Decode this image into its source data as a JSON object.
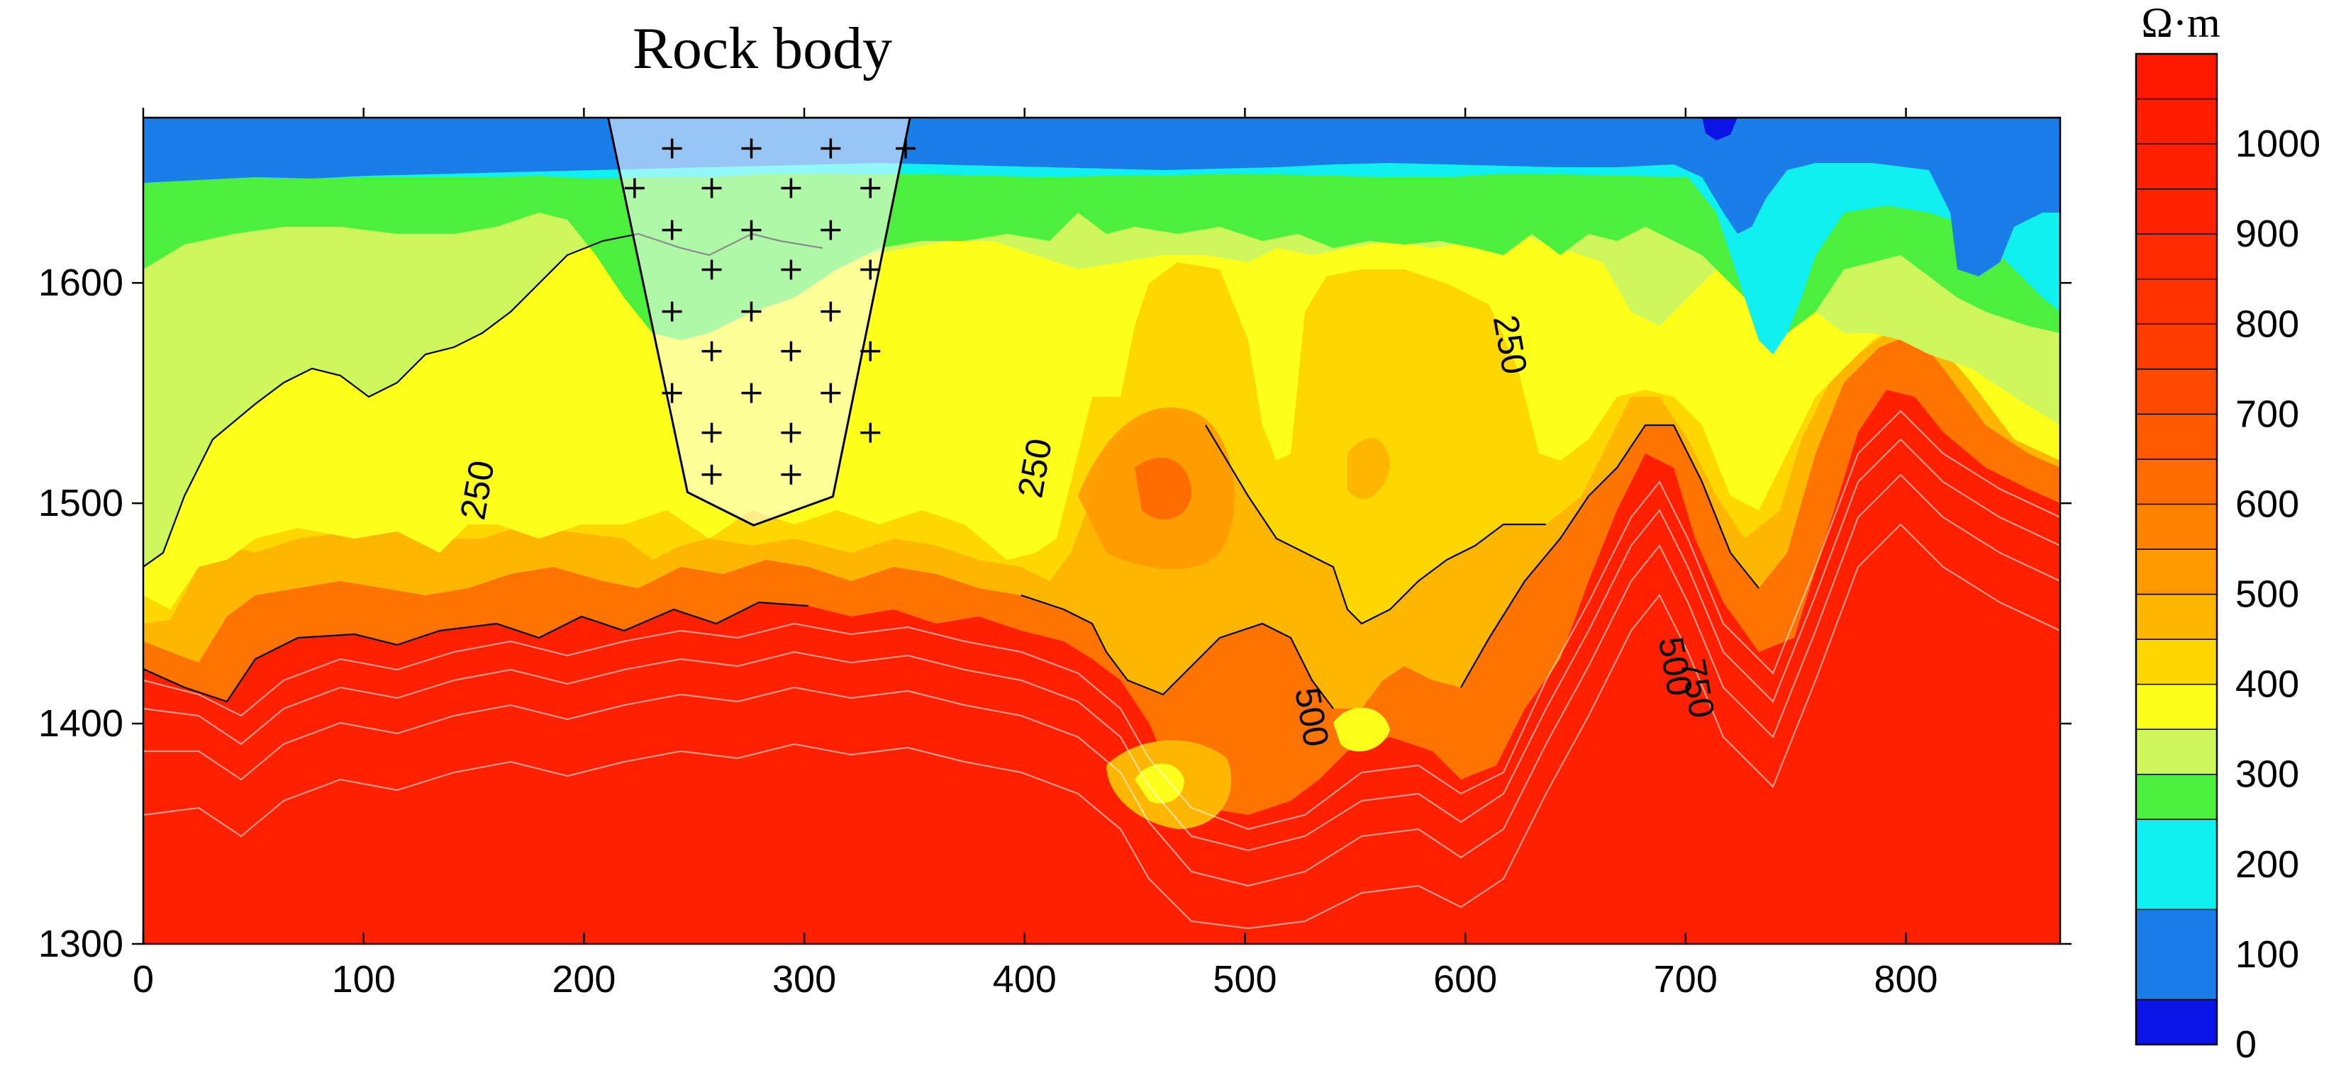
{
  "chart_data": {
    "type": "heatmap",
    "title": "Rock body",
    "xlabel": "",
    "ylabel": "",
    "xlim": [
      0,
      870
    ],
    "ylim": [
      1300,
      1675
    ],
    "x_ticks": [
      "0",
      "100",
      "200",
      "300",
      "400",
      "500",
      "600",
      "700",
      "800"
    ],
    "y_ticks": [
      "1300",
      "1400",
      "1500",
      "1600"
    ],
    "colorbar": {
      "unit": "Ω·m",
      "ticks": [
        "0",
        "100",
        "200",
        "300",
        "400",
        "500",
        "600",
        "700",
        "800",
        "900",
        "1000"
      ],
      "levels": [
        0,
        50,
        150,
        250,
        300,
        350,
        400,
        450,
        500,
        550,
        600,
        650,
        700,
        750,
        800,
        850,
        900,
        950,
        1000,
        1050,
        1100
      ],
      "colors": [
        "#0a14e6",
        "#1a7ee8",
        "#10f0f0",
        "#4cf03c",
        "#cdf75a",
        "#ffff1c",
        "#ffd700",
        "#ffb600",
        "#ff9a00",
        "#ff8200",
        "#ff6c00",
        "#ff5a00",
        "#ff4a00",
        "#ff3c00",
        "#ff3200",
        "#ff2a00",
        "#ff2400",
        "#ff2000",
        "#ff1c00",
        "#ff1800"
      ]
    },
    "contour_labels": [
      {
        "text": "250",
        "x": 157,
        "y": 1505
      },
      {
        "text": "250",
        "x": 410,
        "y": 1515
      },
      {
        "text": "250",
        "x": 615,
        "y": 1571
      },
      {
        "text": "500",
        "x": 525,
        "y": 1402
      },
      {
        "text": "500",
        "x": 690,
        "y": 1425
      },
      {
        "text": "750",
        "x": 700,
        "y": 1415
      }
    ],
    "rock_body": {
      "label": "Rock body",
      "outline": [
        [
          211,
          1675
        ],
        [
          348,
          1675
        ],
        [
          313,
          1503
        ],
        [
          277,
          1490
        ],
        [
          247,
          1505
        ]
      ],
      "plus_rows": [
        {
          "y": 1661,
          "x": [
            240,
            276,
            312,
            346
          ]
        },
        {
          "y": 1643,
          "x": [
            223,
            258,
            294,
            330
          ]
        },
        {
          "y": 1624,
          "x": [
            240,
            276,
            312
          ]
        },
        {
          "y": 1606,
          "x": [
            258,
            294,
            330
          ]
        },
        {
          "y": 1587,
          "x": [
            240,
            276,
            312
          ]
        },
        {
          "y": 1569,
          "x": [
            258,
            294,
            330
          ]
        },
        {
          "y": 1550,
          "x": [
            240,
            276,
            312
          ]
        },
        {
          "y": 1532,
          "x": [
            258,
            294,
            330
          ]
        },
        {
          "y": 1513,
          "x": [
            258,
            294
          ]
        }
      ]
    }
  }
}
